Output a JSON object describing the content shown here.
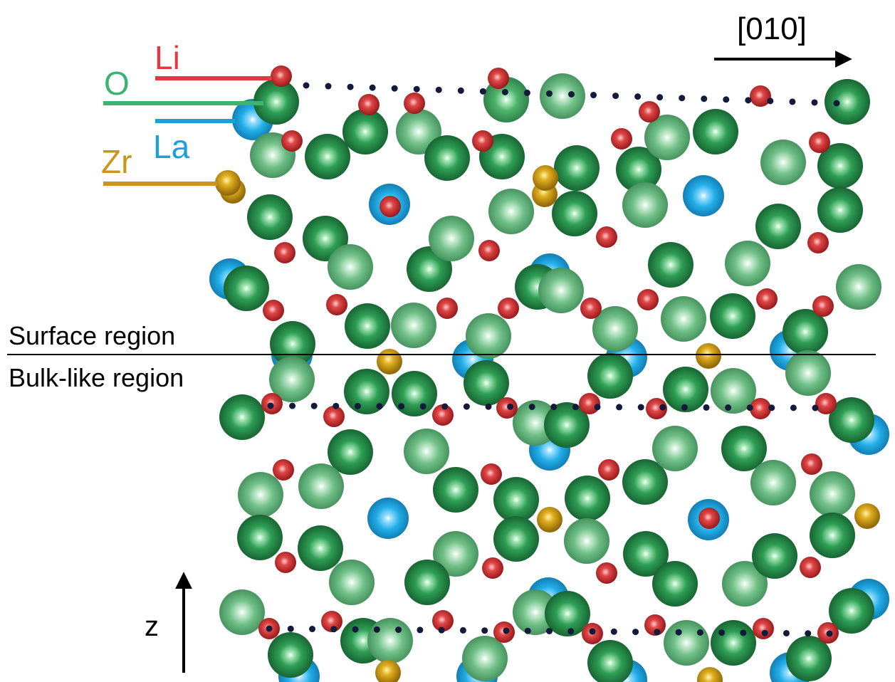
{
  "direction_label": "[010]",
  "z_label": "z",
  "regions": {
    "surface": "Surface region",
    "bulk": "Bulk-like region"
  },
  "legend": [
    {
      "element": "Li",
      "color": "#e03a3e"
    },
    {
      "element": "O",
      "color": "#3cb371"
    },
    {
      "element": "La",
      "color": "#1f9fd8"
    },
    {
      "element": "Zr",
      "color": "#c8961a"
    }
  ],
  "atom_colors": {
    "O": "#2e9e55",
    "O_dark": "#1f7a3e",
    "La": "#1f9fd8",
    "Li": "#d63034",
    "Zr": "#d4a017",
    "dots": "#141a3a"
  }
}
